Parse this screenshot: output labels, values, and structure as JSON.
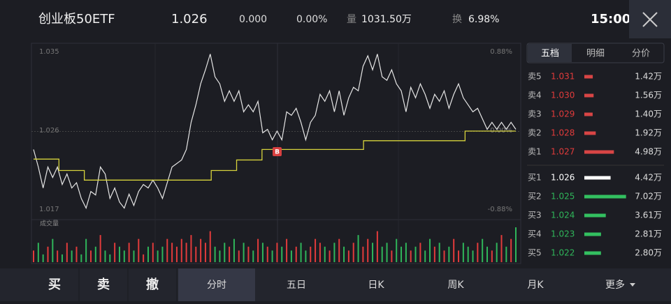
{
  "header": {
    "name": "创业板50ETF",
    "price": "1.026",
    "change": "0.000",
    "change_pct": "0.00%",
    "volume_label": "量",
    "volume": "1031.50万",
    "turnover_label": "换",
    "turnover": "6.98%",
    "time": "15:00"
  },
  "chart_data": {
    "type": "line",
    "volume_title": "成交量",
    "annotation": "B",
    "series": [
      {
        "color": "#e6e6e6",
        "values": [
          1.0239,
          1.0219,
          1.0195,
          1.0219,
          1.0207,
          1.0219,
          1.0199,
          1.0211,
          1.0195,
          1.0201,
          1.0183,
          1.0172,
          1.0191,
          1.0187,
          1.0219,
          1.0211,
          1.0183,
          1.0195,
          1.0179,
          1.0172,
          1.0188,
          1.0175,
          1.0191,
          1.0199,
          1.0195,
          1.0204,
          1.0195,
          1.0183,
          1.0201,
          1.0219,
          1.0223,
          1.0227,
          1.0239,
          1.027,
          1.029,
          1.0314,
          1.033,
          1.0348,
          1.0322,
          1.0314,
          1.0294,
          1.0306,
          1.0294,
          1.0306,
          1.0282,
          1.029,
          1.0282,
          1.0294,
          1.0258,
          1.0262,
          1.025,
          1.026,
          1.025,
          1.0282,
          1.0278,
          1.0286,
          1.027,
          1.025,
          1.027,
          1.0278,
          1.0302,
          1.0294,
          1.0306,
          1.0282,
          1.0306,
          1.0278,
          1.0298,
          1.031,
          1.0306,
          1.0334,
          1.0346,
          1.033,
          1.0348,
          1.0322,
          1.0318,
          1.033,
          1.0314,
          1.0306,
          1.0282,
          1.031,
          1.0298,
          1.0314,
          1.0302,
          1.0286,
          1.0302,
          1.0294,
          1.0306,
          1.0286,
          1.0302,
          1.0314,
          1.0298,
          1.029,
          1.0282,
          1.0286,
          1.0274,
          1.0262,
          1.027,
          1.0262,
          1.027,
          1.0262,
          1.027,
          1.0262
        ]
      },
      {
        "color": "#d6d23c",
        "step": true,
        "values": [
          1.0228,
          1.0215,
          1.0204,
          1.0204,
          1.0204,
          1.0204,
          1.0204,
          1.0215,
          1.0227,
          1.0239,
          1.0239,
          1.0239,
          1.0239,
          1.0249,
          1.0249,
          1.0249,
          1.0249,
          1.026,
          1.026,
          1.026
        ]
      }
    ],
    "volume": [
      3,
      5,
      2,
      4,
      6,
      3,
      2,
      5,
      3,
      4,
      2,
      6,
      3,
      4,
      7,
      3,
      2,
      5,
      4,
      3,
      5,
      3,
      6,
      2,
      4,
      5,
      3,
      4,
      6,
      5,
      4,
      6,
      5,
      7,
      4,
      6,
      5,
      8,
      4,
      3,
      5,
      4,
      6,
      3,
      5,
      4,
      3,
      6,
      5,
      4,
      3,
      5,
      4,
      6,
      3,
      4,
      5,
      3,
      4,
      6,
      5,
      4,
      3,
      5,
      6,
      4,
      3,
      5,
      7,
      4,
      6,
      5,
      8,
      4,
      5,
      3,
      6,
      4,
      5,
      3,
      4,
      5,
      3,
      6,
      4,
      5,
      3,
      4,
      6,
      3,
      5,
      4,
      3,
      5,
      6,
      4,
      3,
      5,
      7,
      4,
      6,
      9
    ],
    "up_color": "#e23b3b",
    "down_color": "#2fb65a",
    "ylim": [
      1.017,
      1.035
    ],
    "yticks": [
      1.017,
      1.026,
      1.035
    ],
    "y2lim": [
      -0.88,
      0.88
    ],
    "y2ticks": [
      {
        "value": -0.88,
        "label": "-0.88%"
      },
      {
        "value": 0,
        "label": "0.00%"
      },
      {
        "value": 0.88,
        "label": "0.88%"
      }
    ]
  },
  "order_book": {
    "tabs": [
      "五档",
      "明细",
      "分价"
    ],
    "asks": [
      {
        "label": "卖5",
        "price": "1.031",
        "volume": 1.42,
        "volume_label": "1.42万"
      },
      {
        "label": "卖4",
        "price": "1.030",
        "volume": 1.56,
        "volume_label": "1.56万"
      },
      {
        "label": "卖3",
        "price": "1.029",
        "volume": 1.4,
        "volume_label": "1.40万"
      },
      {
        "label": "卖2",
        "price": "1.028",
        "volume": 1.92,
        "volume_label": "1.92万"
      },
      {
        "label": "卖1",
        "price": "1.027",
        "volume": 4.98,
        "volume_label": "4.98万"
      }
    ],
    "bids": [
      {
        "label": "买1",
        "price": "1.026",
        "volume": 4.42,
        "volume_label": "4.42万"
      },
      {
        "label": "买2",
        "price": "1.025",
        "volume": 7.02,
        "volume_label": "7.02万"
      },
      {
        "label": "买3",
        "price": "1.024",
        "volume": 3.61,
        "volume_label": "3.61万"
      },
      {
        "label": "买4",
        "price": "1.023",
        "volume": 2.81,
        "volume_label": "2.81万"
      },
      {
        "label": "买5",
        "price": "1.022",
        "volume": 2.8,
        "volume_label": "2.80万"
      }
    ]
  },
  "bottom_bar": {
    "trade": [
      "买",
      "卖",
      "撤"
    ],
    "periods": [
      "分时",
      "五日",
      "日K",
      "周K",
      "月K",
      "更多"
    ]
  }
}
